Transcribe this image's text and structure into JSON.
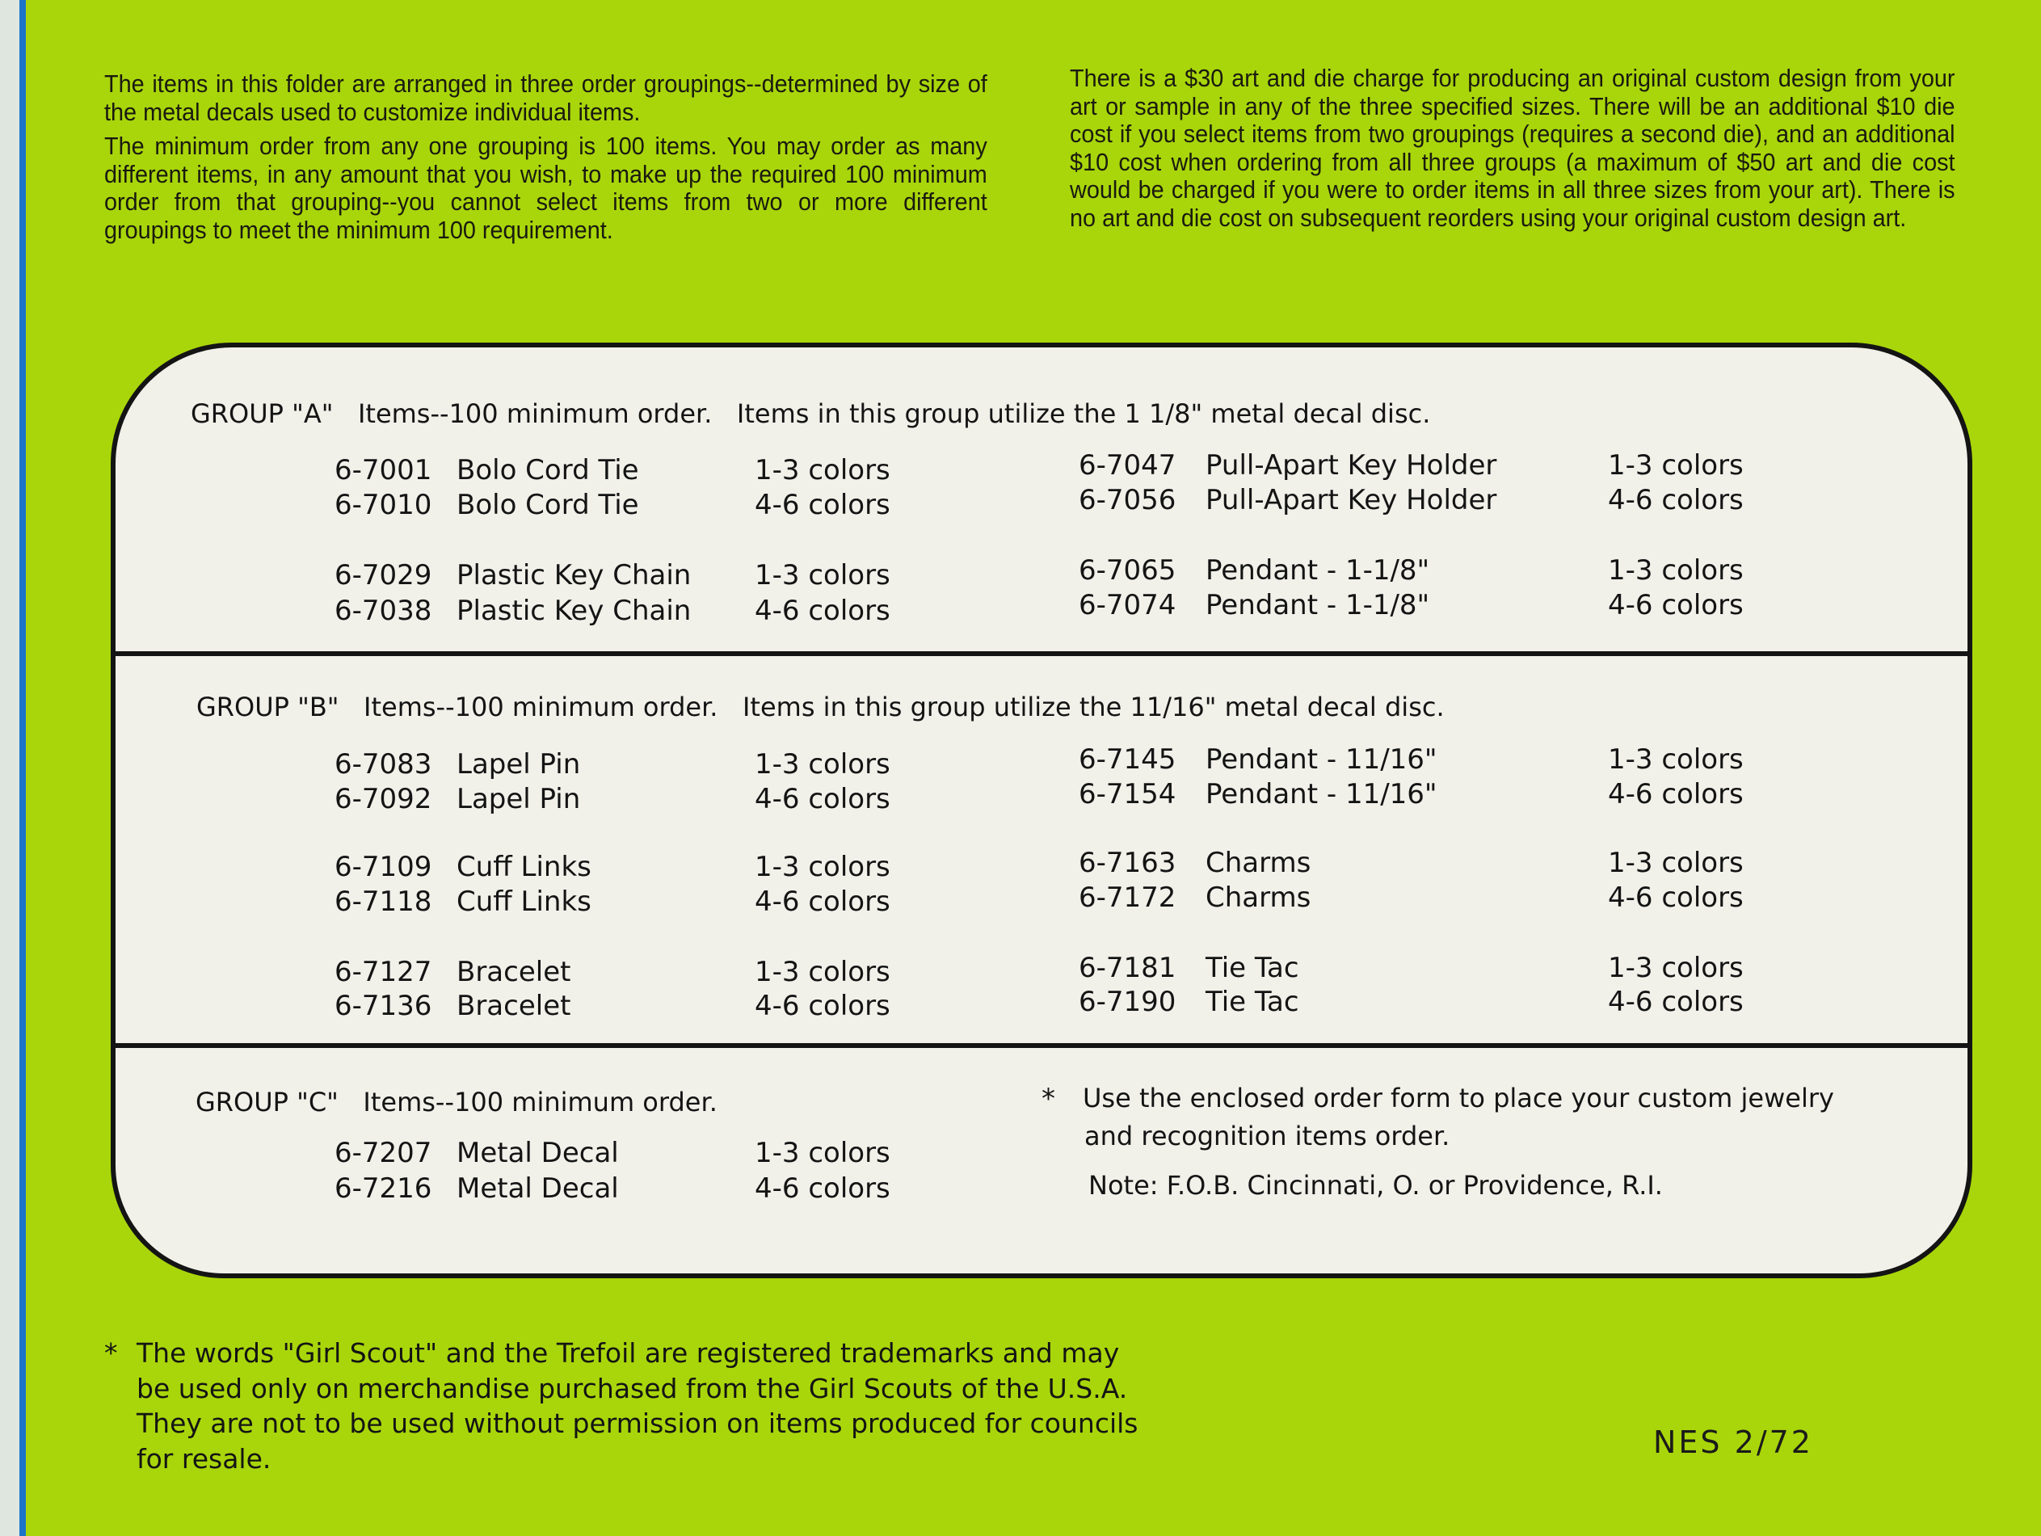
{
  "intro": {
    "left_paragraphs": [
      "The items in this folder are arranged in three order groupings--determined by size of the metal decals used to customize individual items.",
      "The minimum order from any one grouping is 100 items. You may order as many different items, in any amount that you wish, to make up the required 100 minimum order from that grouping--you cannot select items from two or more different groupings to meet the minimum 100 requirement."
    ],
    "right_paragraph": "There is a $30 art and die charge for producing an original custom design from your art or sample in any of the three specified sizes. There will be an additional $10 die cost if you select items from two groupings (requires a second die), and an additional $10 cost when ordering from all three groups (a maximum of $50 art and die cost would be charged if you were to order items in all three sizes from your art). There is no art and die cost on subsequent reorders using your original custom design art."
  },
  "groups": [
    {
      "header": "GROUP \"A\"  Items--100 minimum order.  Items in this group utilize the 1 1/8\" metal decal disc.",
      "left_items": [
        {
          "code": "6-7001",
          "name": "Bolo Cord Tie",
          "colors": "1-3 colors"
        },
        {
          "code": "6-7010",
          "name": "Bolo Cord Tie",
          "colors": "4-6 colors"
        },
        {
          "code": "6-7029",
          "name": "Plastic Key Chain",
          "colors": "1-3 colors"
        },
        {
          "code": "6-7038",
          "name": "Plastic Key Chain",
          "colors": "4-6 colors"
        }
      ],
      "right_items": [
        {
          "code": "6-7047",
          "name": "Pull-Apart Key Holder",
          "colors": "1-3 colors"
        },
        {
          "code": "6-7056",
          "name": "Pull-Apart Key Holder",
          "colors": "4-6 colors"
        },
        {
          "code": "6-7065",
          "name": "Pendant - 1-1/8\"",
          "colors": "1-3 colors"
        },
        {
          "code": "6-7074",
          "name": "Pendant - 1-1/8\"",
          "colors": "4-6 colors"
        }
      ]
    },
    {
      "header": "GROUP \"B\"  Items--100 minimum order.  Items in this group utilize the 11/16\" metal decal disc.",
      "left_items": [
        {
          "code": "6-7083",
          "name": "Lapel Pin",
          "colors": "1-3 colors"
        },
        {
          "code": "6-7092",
          "name": "Lapel Pin",
          "colors": "4-6 colors"
        },
        {
          "code": "6-7109",
          "name": "Cuff Links",
          "colors": "1-3 colors"
        },
        {
          "code": "6-7118",
          "name": "Cuff Links",
          "colors": "4-6 colors"
        },
        {
          "code": "6-7127",
          "name": "Bracelet",
          "colors": "1-3 colors"
        },
        {
          "code": "6-7136",
          "name": "Bracelet",
          "colors": "4-6 colors"
        }
      ],
      "right_items": [
        {
          "code": "6-7145",
          "name": "Pendant - 11/16\"",
          "colors": "1-3 colors"
        },
        {
          "code": "6-7154",
          "name": "Pendant - 11/16\"",
          "colors": "4-6 colors"
        },
        {
          "code": "6-7163",
          "name": "Charms",
          "colors": "1-3 colors"
        },
        {
          "code": "6-7172",
          "name": "Charms",
          "colors": "4-6 colors"
        },
        {
          "code": "6-7181",
          "name": "Tie Tac",
          "colors": "1-3 colors"
        },
        {
          "code": "6-7190",
          "name": "Tie Tac",
          "colors": "4-6 colors"
        }
      ]
    },
    {
      "header": "GROUP \"C\"  Items--100 minimum order.",
      "left_items": [
        {
          "code": "6-7207",
          "name": "Metal Decal",
          "colors": "1-3 colors"
        },
        {
          "code": "6-7216",
          "name": "Metal Decal",
          "colors": "4-6 colors"
        }
      ],
      "right_items": []
    }
  ],
  "order_note": {
    "asterisk": "*",
    "lines": [
      "Use the enclosed order form to place your custom jewelry",
      "and recognition items order."
    ],
    "fob": "Note:  F.O.B.  Cincinnati, O.  or Providence, R.I."
  },
  "footnote": {
    "asterisk": "*",
    "lines": [
      "The words \"Girl Scout\" and the Trefoil are registered trademarks and may",
      "be used only on merchandise purchased from the Girl Scouts of the U.S.A.",
      "They are not to be used without permission on items produced for councils",
      "for resale."
    ]
  },
  "code_label": "NES 2/72",
  "colors": {
    "background": "#a9d60a",
    "panel": "#f1f1ea",
    "edge_stripe": "#1c74c9",
    "ink": "#141414"
  }
}
